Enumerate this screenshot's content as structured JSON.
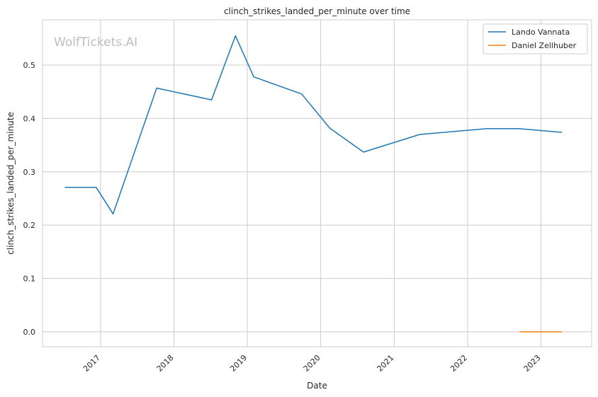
{
  "chart_data": {
    "type": "line",
    "title": "clinch_strikes_landed_per_minute over time",
    "xlabel": "Date",
    "ylabel": "clinch_strikes_landed_per_minute",
    "watermark": "WolfTickets.AI",
    "x_ticks": [
      "2017",
      "2018",
      "2019",
      "2020",
      "2021",
      "2022",
      "2023"
    ],
    "y_ticks": [
      "0.0",
      "0.1",
      "0.2",
      "0.3",
      "0.4",
      "0.5"
    ],
    "xlim": [
      "2016-03-18",
      "2023-09-10"
    ],
    "ylim": [
      -0.028,
      0.585
    ],
    "grid": true,
    "legend_position": "top-right",
    "series": [
      {
        "name": "Lando Vannata",
        "color": "#1f77b4",
        "points": [
          {
            "x": "2016-07-07",
            "y": 0.271
          },
          {
            "x": "2016-12-10",
            "y": 0.271
          },
          {
            "x": "2017-03-04",
            "y": 0.221
          },
          {
            "x": "2017-10-07",
            "y": 0.457
          },
          {
            "x": "2018-07-07",
            "y": 0.435
          },
          {
            "x": "2018-11-03",
            "y": 0.555
          },
          {
            "x": "2019-02-02",
            "y": 0.478
          },
          {
            "x": "2019-09-28",
            "y": 0.446
          },
          {
            "x": "2020-02-15",
            "y": 0.382
          },
          {
            "x": "2020-08-01",
            "y": 0.337
          },
          {
            "x": "2021-05-08",
            "y": 0.37
          },
          {
            "x": "2022-04-09",
            "y": 0.381
          },
          {
            "x": "2022-09-10",
            "y": 0.381
          },
          {
            "x": "2023-04-15",
            "y": 0.374
          }
        ]
      },
      {
        "name": "Daniel Zellhuber",
        "color": "#ff7f0e",
        "points": [
          {
            "x": "2022-09-17",
            "y": 0.0
          },
          {
            "x": "2023-04-15",
            "y": 0.0
          }
        ]
      }
    ]
  }
}
